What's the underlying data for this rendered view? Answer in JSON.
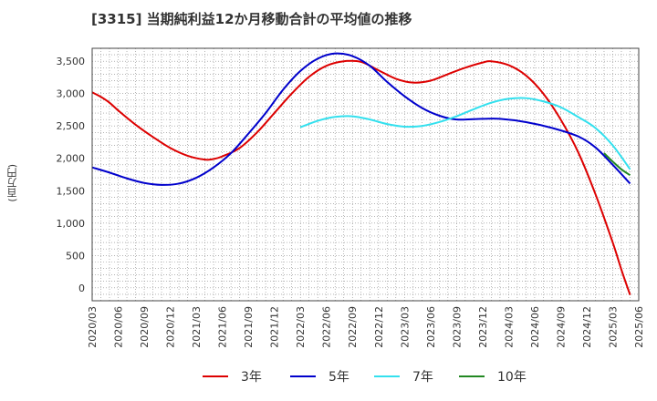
{
  "title": "[3315]  当期純利益12か月移動合計の平均値の推移",
  "ylabel": "(百万円)",
  "colors": {
    "3y": "#dd0000",
    "5y": "#0000cc",
    "7y": "#33e0ee",
    "10y": "#228822"
  },
  "chart_data": {
    "type": "line",
    "title": "[3315]  当期純利益12か月移動合計の平均値の推移",
    "ylabel": "(百万円)",
    "xlabel": "",
    "x_ticks": [
      "2020/03",
      "2020/06",
      "2020/09",
      "2020/12",
      "2021/03",
      "2021/06",
      "2021/09",
      "2021/12",
      "2022/03",
      "2022/06",
      "2022/09",
      "2022/12",
      "2023/03",
      "2023/06",
      "2023/09",
      "2023/12",
      "2024/03",
      "2024/06",
      "2024/09",
      "2024/12",
      "2025/03",
      "2025/06"
    ],
    "y_ticks": [
      0,
      500,
      1000,
      1500,
      2000,
      2500,
      3000,
      3500
    ],
    "y_tick_labels": [
      "0",
      "500",
      "1,000",
      "1,500",
      "2,000",
      "2,500",
      "3,000",
      "3,500"
    ],
    "ylim": [
      -200,
      3700
    ],
    "xlim": [
      "2020/03",
      "2025/06"
    ],
    "grid": true,
    "legend_position": "bottom",
    "series": [
      {
        "name": "3年",
        "color": "#dd0000",
        "points": [
          [
            "2020/03",
            3020
          ],
          [
            "2020/04",
            2950
          ],
          [
            "2020/05",
            2860
          ],
          [
            "2020/06",
            2740
          ],
          [
            "2020/08",
            2520
          ],
          [
            "2020/10",
            2330
          ],
          [
            "2020/12",
            2160
          ],
          [
            "2021/02",
            2040
          ],
          [
            "2021/04",
            1980
          ],
          [
            "2021/05",
            1990
          ],
          [
            "2021/06",
            2030
          ],
          [
            "2021/08",
            2160
          ],
          [
            "2021/10",
            2400
          ],
          [
            "2021/12",
            2700
          ],
          [
            "2022/02",
            3000
          ],
          [
            "2022/04",
            3260
          ],
          [
            "2022/06",
            3430
          ],
          [
            "2022/08",
            3500
          ],
          [
            "2022/10",
            3490
          ],
          [
            "2022/12",
            3360
          ],
          [
            "2023/02",
            3230
          ],
          [
            "2023/04",
            3170
          ],
          [
            "2023/06",
            3200
          ],
          [
            "2023/08",
            3300
          ],
          [
            "2023/10",
            3400
          ],
          [
            "2023/12",
            3480
          ],
          [
            "2024/01",
            3500
          ],
          [
            "2024/03",
            3440
          ],
          [
            "2024/05",
            3280
          ],
          [
            "2024/07",
            3000
          ],
          [
            "2024/09",
            2600
          ],
          [
            "2024/11",
            2100
          ],
          [
            "2025/01",
            1450
          ],
          [
            "2025/03",
            700
          ],
          [
            "2025/04",
            280
          ],
          [
            "2025/05",
            -110
          ]
        ]
      },
      {
        "name": "5年",
        "color": "#0000cc",
        "points": [
          [
            "2020/03",
            1860
          ],
          [
            "2020/05",
            1780
          ],
          [
            "2020/07",
            1690
          ],
          [
            "2020/09",
            1620
          ],
          [
            "2020/11",
            1590
          ],
          [
            "2021/01",
            1610
          ],
          [
            "2021/03",
            1700
          ],
          [
            "2021/05",
            1860
          ],
          [
            "2021/07",
            2080
          ],
          [
            "2021/09",
            2380
          ],
          [
            "2021/11",
            2700
          ],
          [
            "2022/01",
            3060
          ],
          [
            "2022/03",
            3350
          ],
          [
            "2022/05",
            3540
          ],
          [
            "2022/07",
            3620
          ],
          [
            "2022/09",
            3580
          ],
          [
            "2022/11",
            3430
          ],
          [
            "2023/01",
            3180
          ],
          [
            "2023/03",
            2960
          ],
          [
            "2023/05",
            2780
          ],
          [
            "2023/07",
            2660
          ],
          [
            "2023/09",
            2600
          ],
          [
            "2023/12",
            2610
          ],
          [
            "2024/02",
            2610
          ],
          [
            "2024/05",
            2560
          ],
          [
            "2024/08",
            2470
          ],
          [
            "2024/11",
            2340
          ],
          [
            "2025/01",
            2170
          ],
          [
            "2025/03",
            1900
          ],
          [
            "2025/05",
            1610
          ]
        ]
      },
      {
        "name": "7年",
        "color": "#33e0ee",
        "points": [
          [
            "2022/03",
            2480
          ],
          [
            "2022/05",
            2580
          ],
          [
            "2022/07",
            2640
          ],
          [
            "2022/09",
            2650
          ],
          [
            "2022/11",
            2600
          ],
          [
            "2023/01",
            2530
          ],
          [
            "2023/03",
            2490
          ],
          [
            "2023/05",
            2500
          ],
          [
            "2023/07",
            2560
          ],
          [
            "2023/09",
            2650
          ],
          [
            "2023/11",
            2760
          ],
          [
            "2024/01",
            2860
          ],
          [
            "2024/03",
            2920
          ],
          [
            "2024/05",
            2930
          ],
          [
            "2024/07",
            2880
          ],
          [
            "2024/09",
            2790
          ],
          [
            "2024/11",
            2640
          ],
          [
            "2025/01",
            2470
          ],
          [
            "2025/03",
            2200
          ],
          [
            "2025/05",
            1830
          ]
        ]
      },
      {
        "name": "10年",
        "color": "#228822",
        "points": [
          [
            "2025/02",
            2080
          ],
          [
            "2025/03",
            1950
          ],
          [
            "2025/04",
            1830
          ],
          [
            "2025/05",
            1740
          ]
        ]
      }
    ]
  }
}
